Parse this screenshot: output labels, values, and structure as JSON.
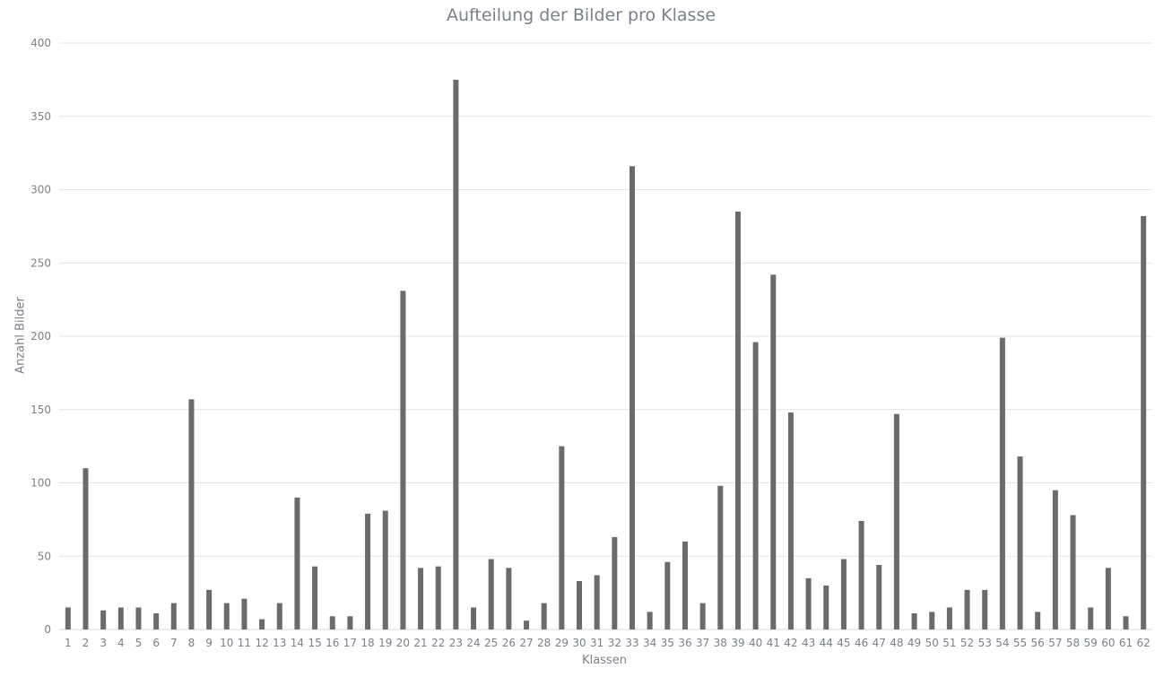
{
  "chart_data": {
    "type": "bar",
    "title": "Aufteilung der Bilder pro Klasse",
    "xlabel": "Klassen",
    "ylabel": "Anzahl Bilder",
    "ylim": [
      0,
      400
    ],
    "yticks": [
      0,
      50,
      100,
      150,
      200,
      250,
      300,
      350,
      400
    ],
    "grid": true,
    "bar_color": "#6b6b6b",
    "categories": [
      "1",
      "2",
      "3",
      "4",
      "5",
      "6",
      "7",
      "8",
      "9",
      "10",
      "11",
      "12",
      "13",
      "14",
      "15",
      "16",
      "17",
      "18",
      "19",
      "20",
      "21",
      "22",
      "23",
      "24",
      "25",
      "26",
      "27",
      "28",
      "29",
      "30",
      "31",
      "32",
      "33",
      "34",
      "35",
      "36",
      "37",
      "38",
      "39",
      "40",
      "41",
      "42",
      "43",
      "44",
      "45",
      "46",
      "47",
      "48",
      "49",
      "50",
      "51",
      "52",
      "53",
      "54",
      "55",
      "56",
      "57",
      "58",
      "59",
      "60",
      "61",
      "62"
    ],
    "values": [
      15,
      110,
      13,
      15,
      15,
      11,
      18,
      157,
      27,
      18,
      21,
      7,
      18,
      90,
      43,
      9,
      9,
      79,
      81,
      231,
      42,
      43,
      375,
      15,
      48,
      42,
      6,
      18,
      125,
      33,
      37,
      63,
      316,
      12,
      46,
      60,
      18,
      98,
      285,
      196,
      242,
      148,
      35,
      30,
      48,
      74,
      44,
      147,
      11,
      12,
      15,
      27,
      27,
      199,
      118,
      12,
      95,
      78,
      15,
      42,
      9,
      282
    ]
  }
}
